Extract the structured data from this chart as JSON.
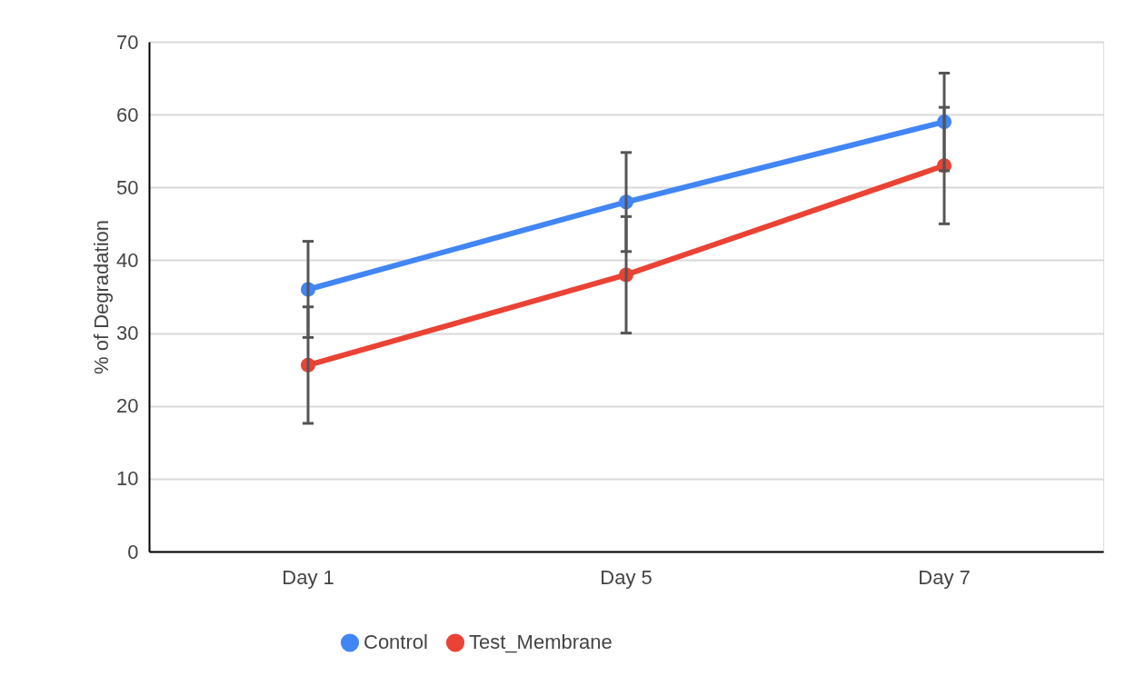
{
  "chart_data": {
    "type": "line",
    "ylabel": "% of Degradation",
    "categories": [
      "Day 1",
      "Day 5",
      "Day 7"
    ],
    "series": [
      {
        "name": "Control",
        "color": "#4285f4",
        "values": [
          36,
          48,
          59
        ],
        "errors": [
          6.6,
          6.8,
          6.7
        ]
      },
      {
        "name": "Test_Membrane",
        "color": "#ea4335",
        "values": [
          25.6,
          38,
          53
        ],
        "errors": [
          8,
          8,
          8
        ]
      }
    ],
    "ylim": [
      0,
      70
    ],
    "yticks": [
      0,
      10,
      20,
      30,
      40,
      50,
      60,
      70
    ],
    "grid": "y",
    "legend": "bottom",
    "marker": "circle",
    "line_style": "solid"
  }
}
